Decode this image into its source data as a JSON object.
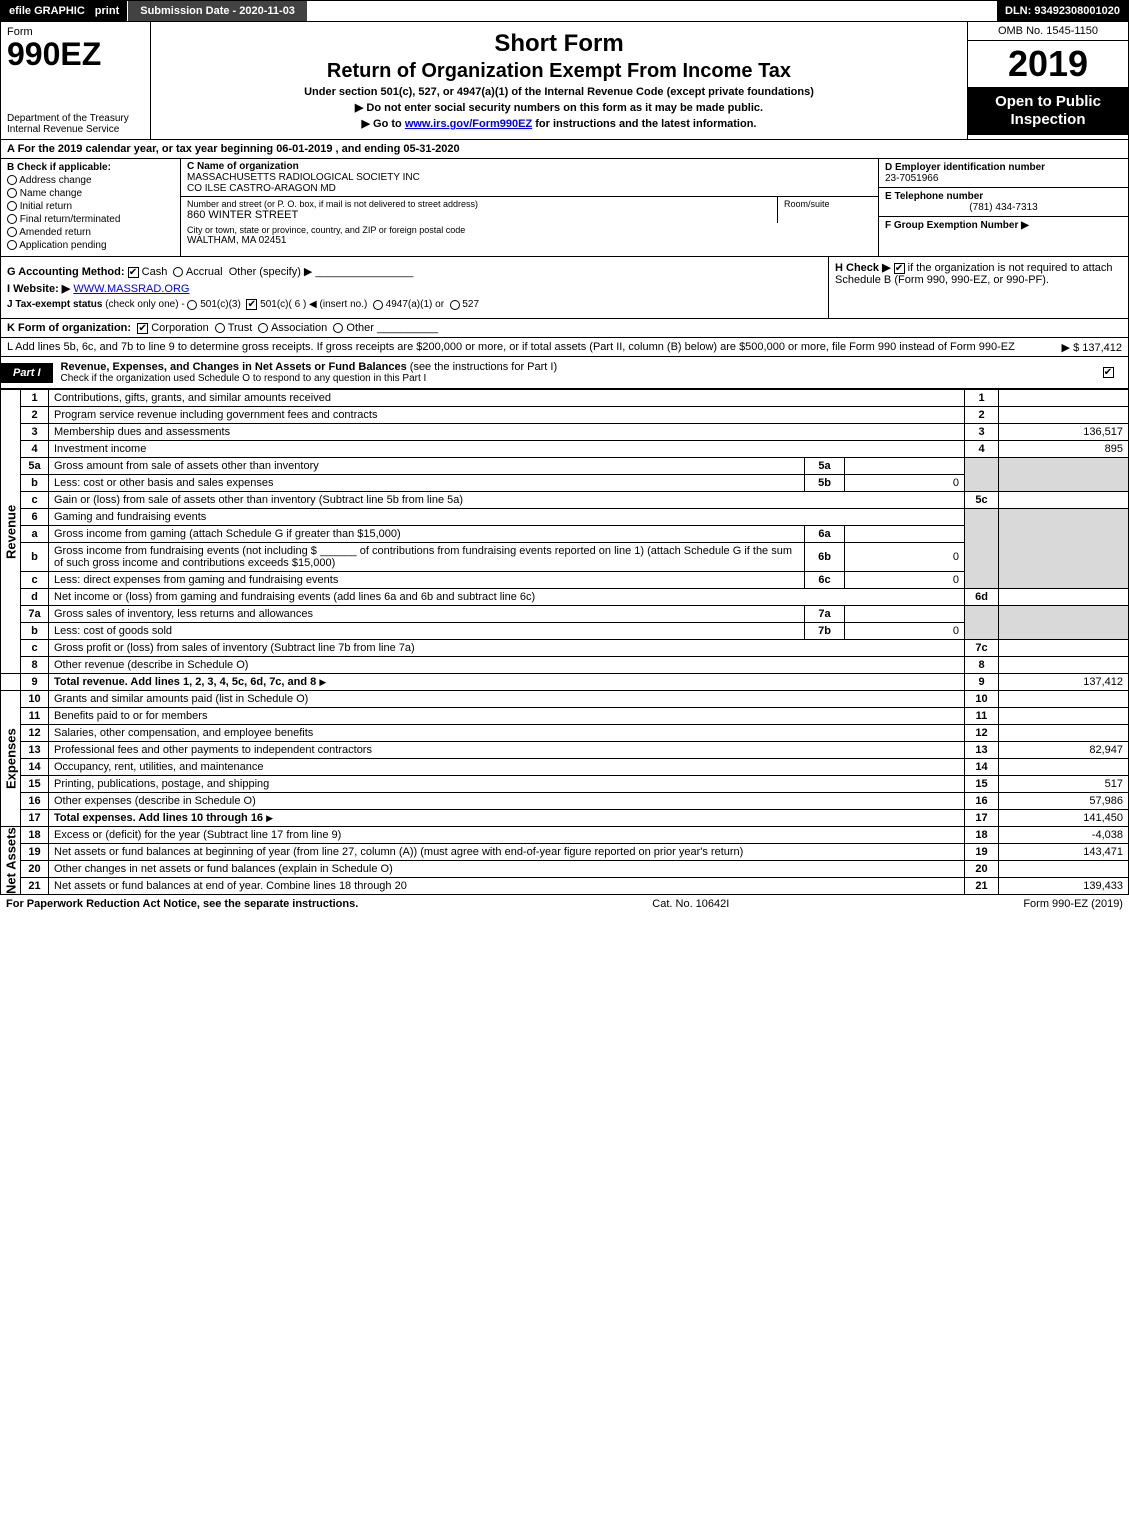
{
  "topbar": {
    "efile": "efile GRAPHIC",
    "print": "print",
    "submission": "Submission Date - 2020-11-03",
    "dln": "DLN: 93492308001020"
  },
  "header": {
    "form_word": "Form",
    "form_num": "990EZ",
    "dept": "Department of the Treasury",
    "irs": "Internal Revenue Service",
    "short_form": "Short Form",
    "title": "Return of Organization Exempt From Income Tax",
    "subtitle1": "Under section 501(c), 527, or 4947(a)(1) of the Internal Revenue Code (except private foundations)",
    "subtitle2": "▶ Do not enter social security numbers on this form as it may be made public.",
    "subtitle3_pre": "▶ Go to ",
    "subtitle3_link": "www.irs.gov/Form990EZ",
    "subtitle3_post": " for instructions and the latest information.",
    "omb": "OMB No. 1545-1150",
    "year": "2019",
    "inspection": "Open to Public Inspection"
  },
  "line_a": "A For the 2019 calendar year, or tax year beginning 06-01-2019 , and ending 05-31-2020",
  "section_b": {
    "title": "B Check if applicable:",
    "opts": [
      "Address change",
      "Name change",
      "Initial return",
      "Final return/terminated",
      "Amended return",
      "Application pending"
    ]
  },
  "section_c": {
    "name_lbl": "C Name of organization",
    "name1": "MASSACHUSETTS RADIOLOGICAL SOCIETY INC",
    "name2": "CO ILSE CASTRO-ARAGON MD",
    "street_lbl": "Number and street (or P. O. box, if mail is not delivered to street address)",
    "room_lbl": "Room/suite",
    "street": "860 WINTER STREET",
    "city_lbl": "City or town, state or province, country, and ZIP or foreign postal code",
    "city": "WALTHAM, MA  02451"
  },
  "section_d": {
    "ein_lbl": "D Employer identification number",
    "ein": "23-7051966",
    "phone_lbl": "E Telephone number",
    "phone": "(781) 434-7313",
    "group_lbl": "F Group Exemption Number  ▶",
    "group": ""
  },
  "section_g": {
    "label": "G Accounting Method:",
    "opts": {
      "cash": "Cash",
      "accrual": "Accrual",
      "other": "Other (specify) ▶"
    }
  },
  "section_h": {
    "label": "H  Check ▶",
    "text": "if the organization is not required to attach Schedule B (Form 990, 990-EZ, or 990-PF)."
  },
  "section_i": {
    "label": "I Website: ▶",
    "value": "WWW.MASSRAD.ORG"
  },
  "section_j": {
    "label": "J Tax-exempt status",
    "note": "(check only one) -",
    "opts": {
      "a": "501(c)(3)",
      "b": "501(c)( 6 ) ◀ (insert no.)",
      "c": "4947(a)(1) or",
      "d": "527"
    }
  },
  "section_k": {
    "label": "K Form of organization:",
    "opts": [
      "Corporation",
      "Trust",
      "Association",
      "Other"
    ]
  },
  "section_l": {
    "text_pre": "L Add lines 5b, 6c, and 7b to line 9 to determine gross receipts. If gross receipts are $200,000 or more, or if total assets (Part II, column (B) below) are $500,000 or more, file Form 990 instead of Form 990-EZ",
    "amount": "▶ $ 137,412"
  },
  "part1": {
    "tag": "Part I",
    "title": "Revenue, Expenses, and Changes in Net Assets or Fund Balances",
    "subtitle": "(see the instructions for Part I)",
    "check_note": "Check if the organization used Schedule O to respond to any question in this Part I"
  },
  "vlabels": {
    "revenue": "Revenue",
    "expenses": "Expenses",
    "netassets": "Net Assets"
  },
  "lines": {
    "1": {
      "n": "1",
      "d": "Contributions, gifts, grants, and similar amounts received",
      "i": "1",
      "v": ""
    },
    "2": {
      "n": "2",
      "d": "Program service revenue including government fees and contracts",
      "i": "2",
      "v": ""
    },
    "3": {
      "n": "3",
      "d": "Membership dues and assessments",
      "i": "3",
      "v": "136,517"
    },
    "4": {
      "n": "4",
      "d": "Investment income",
      "i": "4",
      "v": "895"
    },
    "5a": {
      "n": "5a",
      "d": "Gross amount from sale of assets other than inventory",
      "si": "5a",
      "sv": ""
    },
    "5b": {
      "n": "b",
      "d": "Less: cost or other basis and sales expenses",
      "si": "5b",
      "sv": "0"
    },
    "5c": {
      "n": "c",
      "d": "Gain or (loss) from sale of assets other than inventory (Subtract line 5b from line 5a)",
      "i": "5c",
      "v": ""
    },
    "6": {
      "n": "6",
      "d": "Gaming and fundraising events"
    },
    "6a": {
      "n": "a",
      "d": "Gross income from gaming (attach Schedule G if greater than $15,000)",
      "si": "6a",
      "sv": ""
    },
    "6b": {
      "n": "b",
      "d": "Gross income from fundraising events (not including $ ______ of contributions from fundraising events reported on line 1) (attach Schedule G if the sum of such gross income and contributions exceeds $15,000)",
      "si": "6b",
      "sv": "0"
    },
    "6c": {
      "n": "c",
      "d": "Less: direct expenses from gaming and fundraising events",
      "si": "6c",
      "sv": "0"
    },
    "6d": {
      "n": "d",
      "d": "Net income or (loss) from gaming and fundraising events (add lines 6a and 6b and subtract line 6c)",
      "i": "6d",
      "v": ""
    },
    "7a": {
      "n": "7a",
      "d": "Gross sales of inventory, less returns and allowances",
      "si": "7a",
      "sv": ""
    },
    "7b": {
      "n": "b",
      "d": "Less: cost of goods sold",
      "si": "7b",
      "sv": "0"
    },
    "7c": {
      "n": "c",
      "d": "Gross profit or (loss) from sales of inventory (Subtract line 7b from line 7a)",
      "i": "7c",
      "v": ""
    },
    "8": {
      "n": "8",
      "d": "Other revenue (describe in Schedule O)",
      "i": "8",
      "v": ""
    },
    "9": {
      "n": "9",
      "d": "Total revenue. Add lines 1, 2, 3, 4, 5c, 6d, 7c, and 8",
      "i": "9",
      "v": "137,412",
      "bold": true,
      "arrow": true
    },
    "10": {
      "n": "10",
      "d": "Grants and similar amounts paid (list in Schedule O)",
      "i": "10",
      "v": ""
    },
    "11": {
      "n": "11",
      "d": "Benefits paid to or for members",
      "i": "11",
      "v": ""
    },
    "12": {
      "n": "12",
      "d": "Salaries, other compensation, and employee benefits",
      "i": "12",
      "v": ""
    },
    "13": {
      "n": "13",
      "d": "Professional fees and other payments to independent contractors",
      "i": "13",
      "v": "82,947"
    },
    "14": {
      "n": "14",
      "d": "Occupancy, rent, utilities, and maintenance",
      "i": "14",
      "v": ""
    },
    "15": {
      "n": "15",
      "d": "Printing, publications, postage, and shipping",
      "i": "15",
      "v": "517"
    },
    "16": {
      "n": "16",
      "d": "Other expenses (describe in Schedule O)",
      "i": "16",
      "v": "57,986"
    },
    "17": {
      "n": "17",
      "d": "Total expenses. Add lines 10 through 16",
      "i": "17",
      "v": "141,450",
      "bold": true,
      "arrow": true
    },
    "18": {
      "n": "18",
      "d": "Excess or (deficit) for the year (Subtract line 17 from line 9)",
      "i": "18",
      "v": "-4,038"
    },
    "19": {
      "n": "19",
      "d": "Net assets or fund balances at beginning of year (from line 27, column (A)) (must agree with end-of-year figure reported on prior year's return)",
      "i": "19",
      "v": "143,471"
    },
    "20": {
      "n": "20",
      "d": "Other changes in net assets or fund balances (explain in Schedule O)",
      "i": "20",
      "v": ""
    },
    "21": {
      "n": "21",
      "d": "Net assets or fund balances at end of year. Combine lines 18 through 20",
      "i": "21",
      "v": "139,433"
    }
  },
  "footer": {
    "left": "For Paperwork Reduction Act Notice, see the separate instructions.",
    "mid": "Cat. No. 10642I",
    "right": "Form 990-EZ (2019)"
  }
}
